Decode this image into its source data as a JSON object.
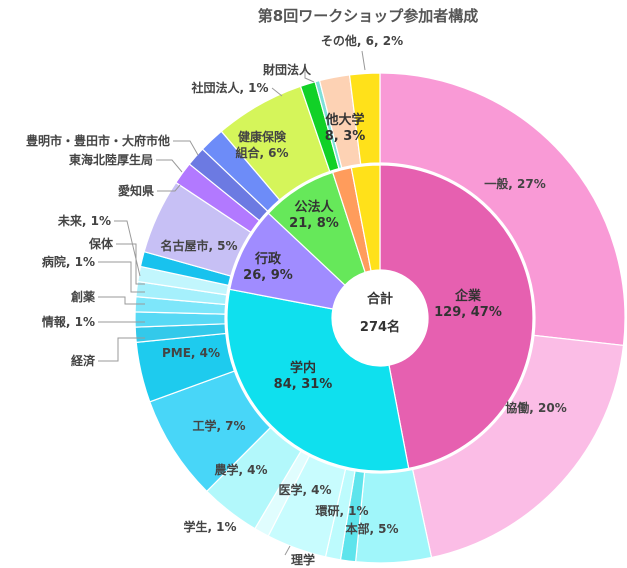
{
  "chart_data": {
    "type": "pie",
    "title": "第8回ワークショップ参加者構成",
    "center_label": {
      "line1": "合計",
      "line2": "274名"
    },
    "inner_ring": [
      {
        "id": "kigyo",
        "label": "企業",
        "value_label": "129, 47%",
        "percent": 47,
        "color": "#e660b0"
      },
      {
        "id": "gakunai",
        "label": "学内",
        "value_label": "84, 31%",
        "percent": 31,
        "color": "#0fe0ee"
      },
      {
        "id": "gyosei",
        "label": "行政",
        "value_label": "26, 9%",
        "percent": 9,
        "color": "#a08cff"
      },
      {
        "id": "kohojin",
        "label": "公法人",
        "value_label": "21, 8%",
        "percent": 8,
        "color": "#66e85a"
      },
      {
        "id": "ta-orange",
        "label": "",
        "value_label": "",
        "percent": 2,
        "color": "#ff9c5c"
      },
      {
        "id": "ta-yellow",
        "label": "",
        "value_label": "",
        "percent": 3,
        "color": "#ffe11a"
      }
    ],
    "inner_extra_labels": [
      {
        "id": "tadaigaku",
        "text1": "他大学",
        "text2": "8, 3%"
      }
    ],
    "outer_ring": [
      {
        "id": "ippan",
        "label": "一般, 27%",
        "percent": 27,
        "color": "#f99ad6"
      },
      {
        "id": "kyodo",
        "label": "協働, 20%",
        "percent": 20,
        "color": "#fbbde6"
      },
      {
        "id": "honbu",
        "label": "本部, 5%",
        "percent": 5,
        "color": "#a0f6fa"
      },
      {
        "id": "kanken",
        "label": "環研, 1%",
        "percent": 1,
        "color": "#5ee4ec"
      },
      {
        "id": "rigaku",
        "label": "理学",
        "percent": 1,
        "color": "#bdfbfd"
      },
      {
        "id": "igaku",
        "label": "医学, 4%",
        "percent": 4,
        "color": "#c8fcfe"
      },
      {
        "id": "gakusei",
        "label": "学生, 1%",
        "percent": 1,
        "color": "#e0fdfe"
      },
      {
        "id": "nogaku",
        "label": "農学, 4%",
        "percent": 4,
        "color": "#b2f8fb"
      },
      {
        "id": "kogaku",
        "label": "工学, 7%",
        "percent": 7,
        "color": "#48d6f8"
      },
      {
        "id": "pme",
        "label": "PME, 4%",
        "percent": 4,
        "color": "#1ecbee"
      },
      {
        "id": "keizai",
        "label": "経済",
        "percent": 1,
        "color": "#33c9ea"
      },
      {
        "id": "joho",
        "label": "情報, 1%",
        "percent": 1,
        "color": "#58d9f5"
      },
      {
        "id": "soyaku",
        "label": "創薬",
        "percent": 1,
        "color": "#7de6fa"
      },
      {
        "id": "byoin",
        "label": "病院, 1%",
        "percent": 1,
        "color": "#a5f0fc"
      },
      {
        "id": "hotai",
        "label": "保体",
        "percent": 1,
        "color": "#c2f6fd"
      },
      {
        "id": "mirai",
        "label": "未来, 1%",
        "percent": 1,
        "color": "#18c2ee"
      },
      {
        "id": "nagoya",
        "label": "名古屋市, 5%",
        "percent": 5,
        "color": "#c7c0f5"
      },
      {
        "id": "aichi",
        "label": "愛知県",
        "percent": 1.5,
        "color": "#b279ff"
      },
      {
        "id": "tokai",
        "label": "東海北陸厚生局",
        "percent": 1.3,
        "color": "#6c7ae2"
      },
      {
        "id": "toyoake",
        "label": "豊明市・豊田市・大府市他",
        "percent": 1.7,
        "color": "#6d8cf8"
      },
      {
        "id": "kenpo",
        "label": "健康保険\n組合, 6%",
        "percent": 6,
        "color": "#d5f55a"
      },
      {
        "id": "shadan",
        "label": "社団法人, 1%",
        "percent": 1,
        "color": "#11d127"
      },
      {
        "id": "zaidan-a",
        "label": "",
        "percent": 0.3,
        "color": "#7ee0d8"
      },
      {
        "id": "zaidan",
        "label": "財団法人",
        "percent": 2,
        "color": "#fdd2b4"
      },
      {
        "id": "sonota",
        "label": "その他, 6, 2%",
        "percent": 2,
        "color": "#ffe11a"
      }
    ]
  }
}
